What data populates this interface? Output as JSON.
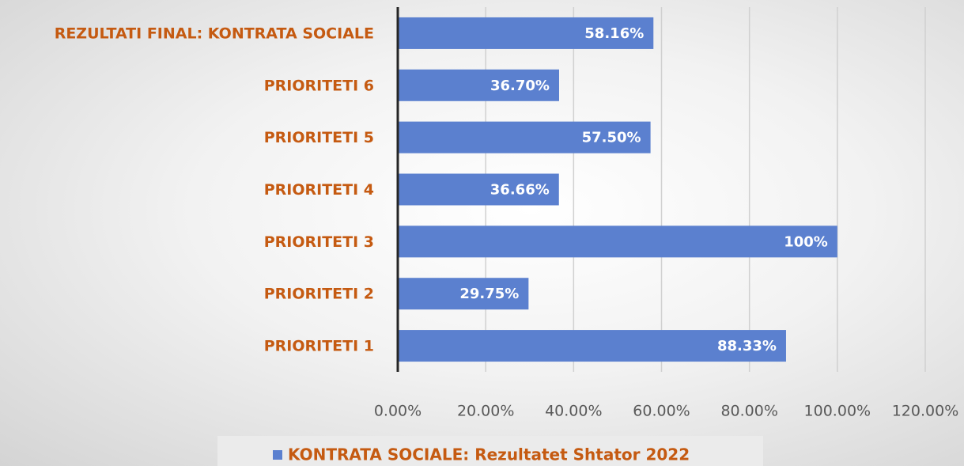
{
  "chart_data": {
    "type": "hbar",
    "categories": [
      "REZULTATI FINAL: KONTRATA SOCIALE",
      "PRIORITETI 6",
      "PRIORITETI 5",
      "PRIORITETI 4",
      "PRIORITETI 3",
      "PRIORITETI 2",
      "PRIORITETI 1"
    ],
    "series": [
      {
        "name": "KONTRATA SOCIALE: Rezultatet Shtator 2022",
        "color": "#5b80cf",
        "values": [
          58.16,
          36.7,
          57.5,
          36.66,
          100,
          29.75,
          88.33
        ],
        "value_labels": [
          "58.16%",
          "36.70%",
          "57.50%",
          "36.66%",
          "100%",
          "29.75%",
          "88.33%"
        ]
      }
    ],
    "xlim": [
      0,
      120
    ],
    "xticks": [
      {
        "value": 0,
        "label": "0.00%"
      },
      {
        "value": 20,
        "label": "20.00%"
      },
      {
        "value": 40,
        "label": "40.00%"
      },
      {
        "value": 60,
        "label": "60.00%"
      },
      {
        "value": 80,
        "label": "80.00%"
      },
      {
        "value": 100,
        "label": "100.00%"
      },
      {
        "value": 120,
        "label": "120.00%"
      }
    ],
    "grid": true,
    "legend": "bottom"
  }
}
